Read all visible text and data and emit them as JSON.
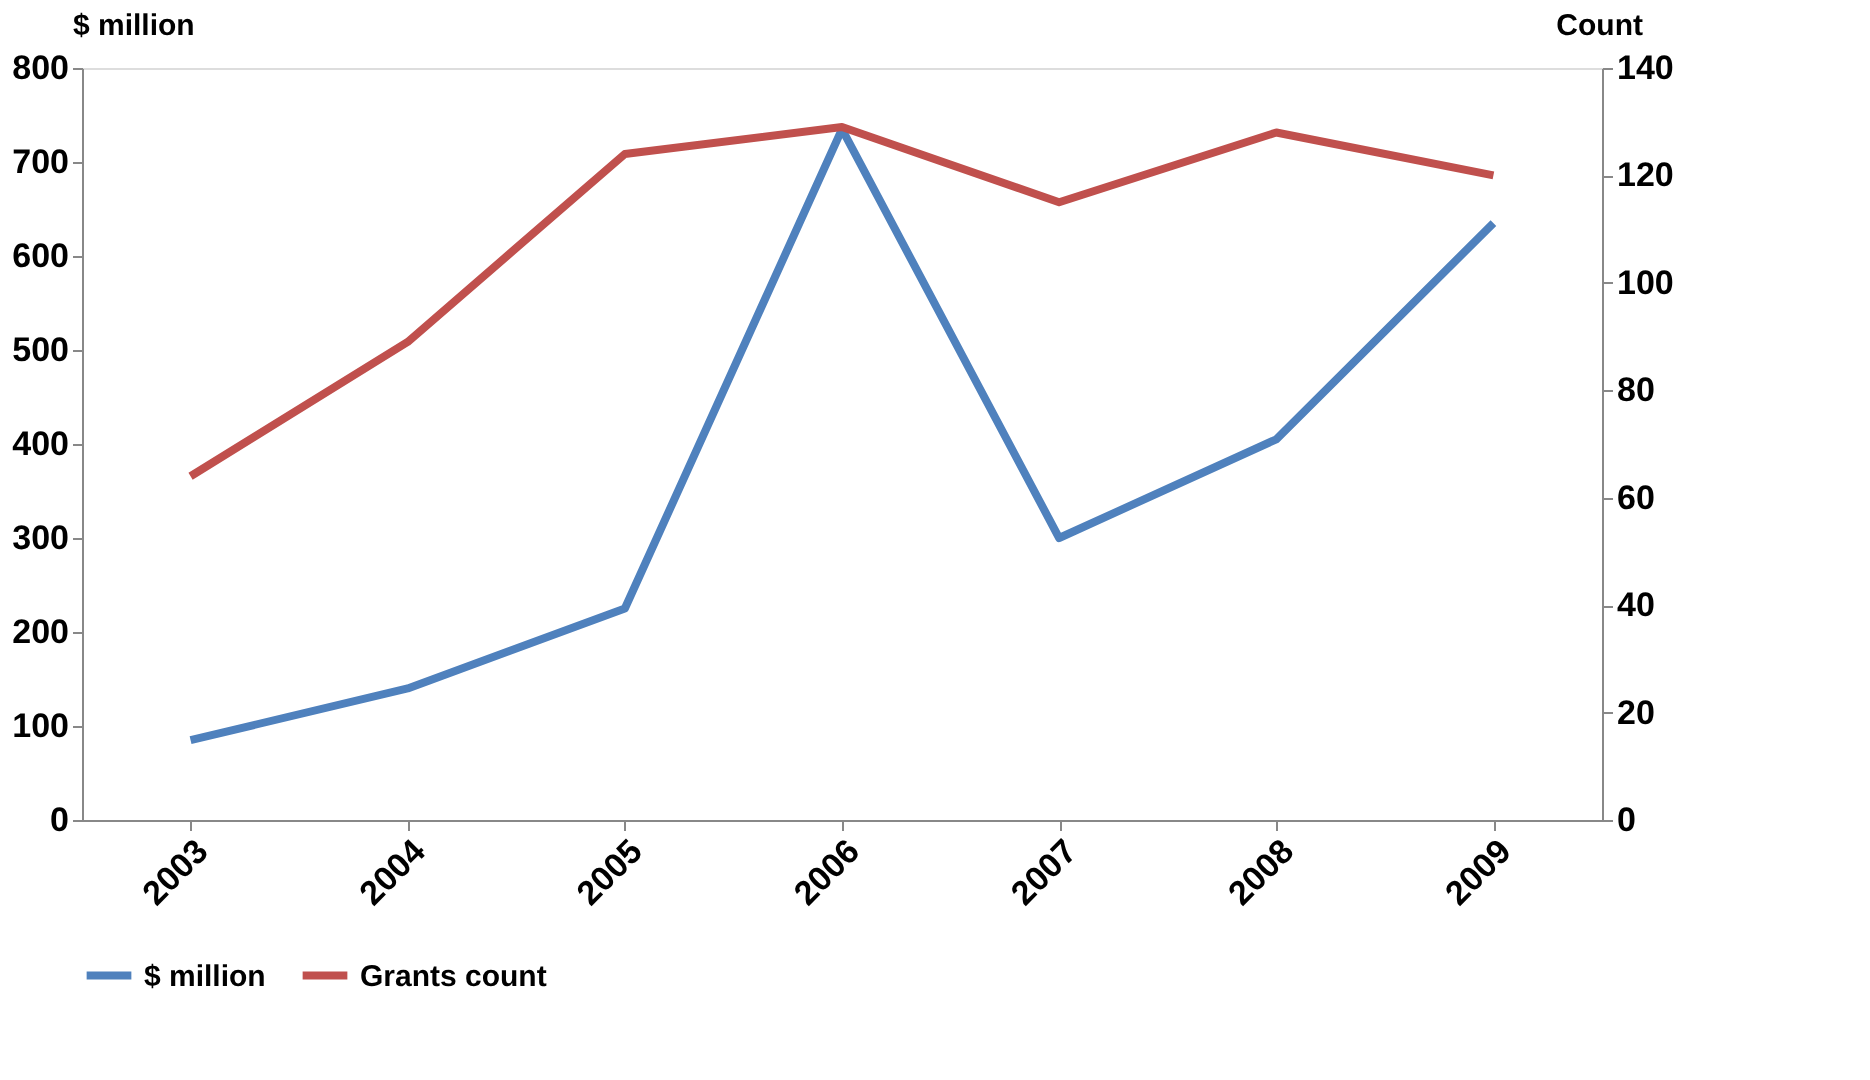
{
  "chart_data": {
    "type": "line",
    "categories": [
      "2003",
      "2004",
      "2005",
      "2006",
      "2007",
      "2008",
      "2009"
    ],
    "ylabel": "$ million",
    "y2label": "Count",
    "ylim": [
      0,
      800
    ],
    "yticks": [
      0,
      100,
      200,
      300,
      400,
      500,
      600,
      700,
      800
    ],
    "y2lim": [
      0,
      140
    ],
    "y2ticks": [
      0,
      20,
      40,
      60,
      80,
      100,
      120,
      140
    ],
    "series": [
      {
        "name": "$ million",
        "color": "#4f81bd",
        "values": [
          85,
          140,
          225,
          735,
          300,
          405,
          635
        ]
      },
      {
        "name": "Grants count",
        "color": "#c0504d",
        "axis": "y2",
        "values": [
          64,
          89,
          124,
          129,
          115,
          128,
          120
        ]
      }
    ],
    "legend": "bottom",
    "grid": false,
    "marker": "none",
    "line_style": "solid"
  }
}
